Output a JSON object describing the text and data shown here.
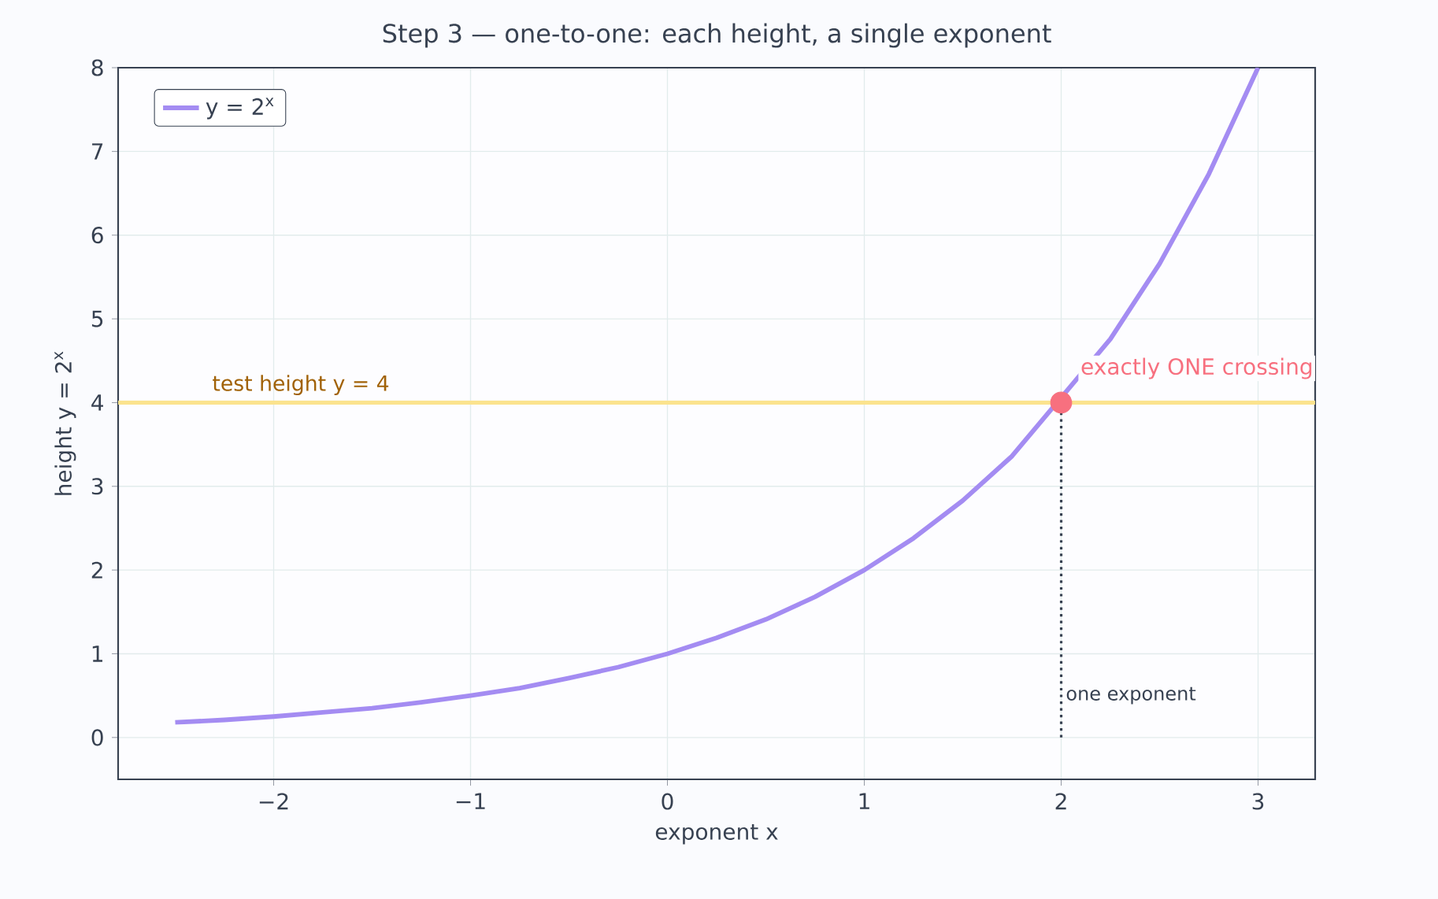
{
  "chart_data": {
    "type": "line",
    "title": "Step 3 — one-to-one: each height, a single exponent",
    "xlabel": "exponent  x",
    "ylabel": "height  y = 2$^{x}$",
    "x": [
      -2.5,
      -2.25,
      -2,
      -1.75,
      -1.5,
      -1.25,
      -1,
      -0.75,
      -0.5,
      -0.25,
      0,
      0.25,
      0.5,
      0.75,
      1,
      1.25,
      1.5,
      1.75,
      2,
      2.25,
      2.5,
      2.75,
      3
    ],
    "series": [
      {
        "name": "y = 2$^{x}$",
        "color": "#a48cf2",
        "values": [
          0.18,
          0.21,
          0.25,
          0.3,
          0.35,
          0.42,
          0.5,
          0.59,
          0.71,
          0.84,
          1,
          1.19,
          1.41,
          1.68,
          2,
          2.38,
          2.83,
          3.36,
          null,
          4.76,
          5.66,
          6.73,
          8
        ]
      },
      {
        "type": "scatter",
        "marker": "circle",
        "color": "#f7707f",
        "values": [
          null,
          null,
          null,
          null,
          null,
          null,
          null,
          null,
          null,
          null,
          null,
          null,
          null,
          null,
          null,
          null,
          null,
          null,
          4,
          null,
          null,
          null,
          null
        ]
      },
      {
        "type": "line",
        "line_style": "dotted",
        "color": "#374151",
        "x": [
          2,
          2
        ],
        "values": [
          0,
          4
        ]
      }
    ],
    "xlim": [
      -2.79,
      3.29
    ],
    "ylim": [
      -0.5,
      8
    ],
    "xticks": [
      {
        "value": -2,
        "label": "−2"
      },
      {
        "value": -1,
        "label": "−1"
      },
      0,
      1,
      2,
      3
    ],
    "yticks": [
      0,
      1,
      2,
      3,
      4,
      5,
      6,
      7,
      8
    ],
    "ref_lines": [
      {
        "axis": "y",
        "value": 4,
        "label": "test height y = 4",
        "color": "#fbe38e"
      }
    ],
    "annotations": [
      {
        "text": "exactly ONE crossing",
        "x": 2,
        "y": 4
      },
      {
        "text": "one exponent",
        "x": 2,
        "y": 0.5
      }
    ],
    "grid": true,
    "legend": "top left"
  }
}
